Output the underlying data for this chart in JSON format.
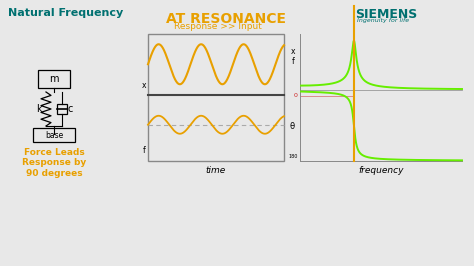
{
  "bg_color": "#e8e8e8",
  "title_text": "Natural Frequency",
  "title_color": "#007070",
  "siemens_text": "SIEMENS",
  "siemens_color": "#007070",
  "siemens_tagline": "Ingenuity for life",
  "resonance_title": "AT RESONANCE",
  "resonance_color": "#e8a000",
  "response_label": "Response >> Input",
  "response_color": "#e8a000",
  "time_label": "time",
  "freq_label": "frequency",
  "force_leads_text": "Force Leads\nResponse by\n90 degrees",
  "force_leads_color": "#e8a000",
  "orange_color": "#e8a000",
  "green_color": "#66ee00",
  "box_color": "#888888",
  "divider_color": "#444444",
  "dashed_color": "#aaaaaa"
}
